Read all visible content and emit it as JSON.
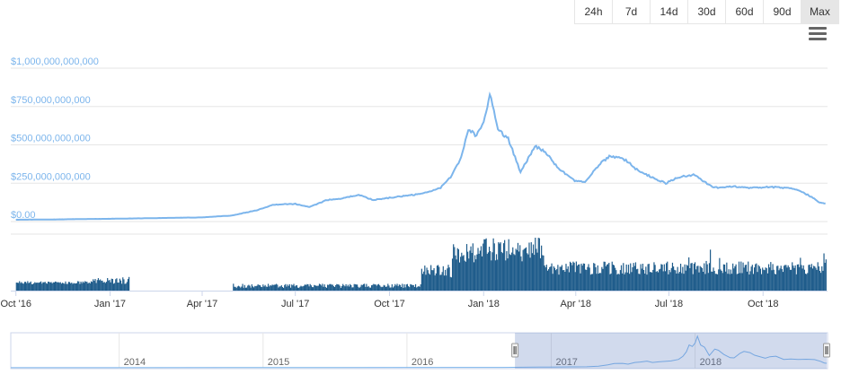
{
  "range_buttons": [
    {
      "label": "24h",
      "active": false
    },
    {
      "label": "7d",
      "active": false
    },
    {
      "label": "14d",
      "active": false
    },
    {
      "label": "30d",
      "active": false
    },
    {
      "label": "60d",
      "active": false
    },
    {
      "label": "90d",
      "active": false
    },
    {
      "label": "Max",
      "active": true
    }
  ],
  "menu_icon": "hamburger-menu-icon",
  "colors": {
    "line": "#7cb5ec",
    "volume": "#1f5c8b",
    "navigator_mask": "#ccd6eb",
    "grid": "#e6e6e6"
  },
  "chart_data": {
    "type": "line",
    "title": "",
    "xlabel": "",
    "ylabel": "",
    "ylim": [
      0,
      1000000000000
    ],
    "y_ticks": [
      "$0.00",
      "$250,000,000,000",
      "$500,000,000,000",
      "$750,000,000,000",
      "$1,000,000,000,000"
    ],
    "x_ticks": [
      "Oct '16",
      "Jan '17",
      "Apr '17",
      "Jul '17",
      "Oct '17",
      "Jan '18",
      "Apr '18",
      "Jul '18",
      "Oct '18"
    ],
    "series": [
      {
        "kind": "line",
        "x": [
          "2016-10-01",
          "2016-11-01",
          "2016-12-01",
          "2017-01-01",
          "2017-02-01",
          "2017-03-01",
          "2017-04-01",
          "2017-05-01",
          "2017-05-25",
          "2017-06-10",
          "2017-07-01",
          "2017-07-15",
          "2017-08-01",
          "2017-08-15",
          "2017-09-01",
          "2017-09-15",
          "2017-10-01",
          "2017-10-20",
          "2017-11-01",
          "2017-11-20",
          "2017-12-01",
          "2017-12-10",
          "2017-12-17",
          "2017-12-25",
          "2018-01-01",
          "2018-01-07",
          "2018-01-15",
          "2018-01-25",
          "2018-02-06",
          "2018-02-20",
          "2018-03-01",
          "2018-03-15",
          "2018-03-31",
          "2018-04-10",
          "2018-04-25",
          "2018-05-05",
          "2018-05-20",
          "2018-06-01",
          "2018-06-28",
          "2018-07-10",
          "2018-07-25",
          "2018-08-14",
          "2018-09-01",
          "2018-09-20",
          "2018-10-10",
          "2018-10-31",
          "2018-11-15",
          "2018-11-25",
          "2018-12-01"
        ],
        "y": [
          12000000000,
          13000000000,
          16000000000,
          18000000000,
          21000000000,
          24000000000,
          27000000000,
          40000000000,
          75000000000,
          110000000000,
          115000000000,
          95000000000,
          140000000000,
          150000000000,
          175000000000,
          140000000000,
          155000000000,
          170000000000,
          180000000000,
          220000000000,
          300000000000,
          420000000000,
          600000000000,
          560000000000,
          650000000000,
          830000000000,
          600000000000,
          540000000000,
          320000000000,
          490000000000,
          460000000000,
          350000000000,
          265000000000,
          260000000000,
          380000000000,
          430000000000,
          400000000000,
          330000000000,
          250000000000,
          290000000000,
          305000000000,
          220000000000,
          230000000000,
          220000000000,
          225000000000,
          215000000000,
          170000000000,
          125000000000,
          118000000000
        ]
      }
    ],
    "volume": {
      "note_periods": [
        "2016-10-01",
        "2016-12-31",
        "2017-05-01",
        "2018-12-01"
      ],
      "has_bars": true
    },
    "navigator": {
      "x_ticks": [
        "2014",
        "2015",
        "2016",
        "2017",
        "2018"
      ],
      "selected_range": [
        "2016-10-01",
        "2018-12-01"
      ]
    }
  }
}
